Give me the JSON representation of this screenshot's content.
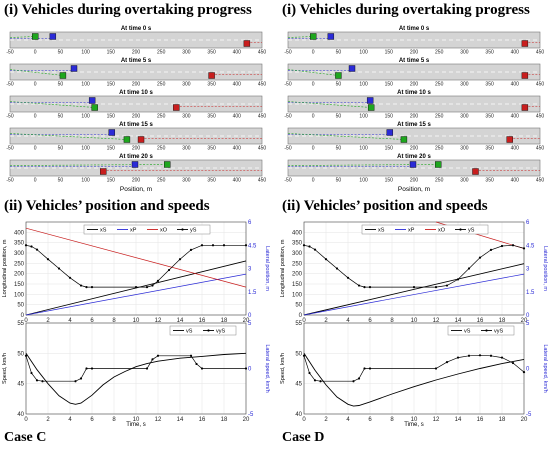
{
  "colors": {
    "blue": "#2b2bd6",
    "green": "#1ea61e",
    "red": "#c81e1e",
    "black": "#000000",
    "track": "#d4d4d4",
    "axis": "#444444",
    "grid": "#e3e3e3"
  },
  "panels": [
    {
      "case_label": "Case C",
      "heading_top": "(i) Vehicles during overtaking progress",
      "heading_mid": "(ii) Vehicles’ position and speeds",
      "chart_data": [
        {
          "type": "scatter",
          "title": "(i) Vehicles during overtaking progress",
          "xlabel": "Position, m",
          "xlim": [
            -50,
            450
          ],
          "xticks": [
            -50,
            0,
            50,
            100,
            150,
            200,
            250,
            300,
            350,
            400,
            450
          ],
          "frames": [
            {
              "label": "At time 0 s",
              "xs": 0,
              "ys": 0,
              "xp": 35,
              "xo": 420,
              "lat": 1
            },
            {
              "label": "At time 5 s",
              "xs": 55,
              "ys": 2.3,
              "xp": 77,
              "xo": 350,
              "lat": 0
            },
            {
              "label": "At time 10 s",
              "xs": 118,
              "ys": 3.0,
              "xp": 113,
              "xo": 280,
              "lat": 0
            },
            {
              "label": "At time 15 s",
              "xs": 182,
              "ys": 3.0,
              "xp": 152,
              "xo": 210,
              "lat": 0
            },
            {
              "label": "At time 20 s",
              "xs": 262,
              "ys": 0,
              "xp": 198,
              "xo": 135,
              "lat": 1
            }
          ]
        },
        {
          "type": "line",
          "title": "(ii) Vehicles’ position and speeds",
          "xlabel": "Time, s",
          "ylabel": "Longitudinal position, m",
          "y2label": "Lateral position, m",
          "xlim": [
            0,
            20
          ],
          "ylim": [
            0,
            450
          ],
          "y2lim": [
            0,
            6
          ],
          "xticks": [
            0,
            2,
            4,
            6,
            8,
            10,
            12,
            14,
            16,
            18,
            20
          ],
          "yticks": [
            0,
            50,
            100,
            150,
            200,
            250,
            300,
            350,
            400
          ],
          "y2ticks": [
            "0",
            "1.5",
            "3",
            "4.5",
            "6"
          ],
          "legend": [
            "xS",
            "xP",
            "xO",
            "yS"
          ],
          "series": [
            {
              "name": "xS",
              "points": [
                [
                  0,
                  0
                ],
                [
                  20,
                  262
                ]
              ]
            },
            {
              "name": "xP",
              "points": [
                [
                  0,
                  0
                ],
                [
                  20,
                  198
                ]
              ]
            },
            {
              "name": "xO",
              "points": [
                [
                  0,
                  420
                ],
                [
                  20,
                  135
                ]
              ]
            },
            {
              "name": "yS",
              "points": [
                [
                  0,
                  4.5
                ],
                [
                  0.5,
                  4.42
                ],
                [
                  1,
                  4.22
                ],
                [
                  2,
                  3.6
                ],
                [
                  3,
                  3.0
                ],
                [
                  4,
                  2.4
                ],
                [
                  5,
                  1.9
                ],
                [
                  5.5,
                  1.8
                ],
                [
                  6,
                  1.8
                ],
                [
                  10,
                  1.8
                ],
                [
                  11,
                  1.8
                ],
                [
                  11.5,
                  1.9
                ],
                [
                  12,
                  2.2
                ],
                [
                  13,
                  2.9
                ],
                [
                  14,
                  3.6
                ],
                [
                  15,
                  4.2
                ],
                [
                  16,
                  4.5
                ],
                [
                  17,
                  4.5
                ],
                [
                  18,
                  4.5
                ],
                [
                  20,
                  4.5
                ]
              ]
            }
          ]
        },
        {
          "type": "line",
          "xlabel": "Time, s",
          "ylabel": "Speed, km/h",
          "y2label": "Lateral speed, km/h",
          "xlim": [
            0,
            20
          ],
          "ylim": [
            40,
            55
          ],
          "y2lim": [
            -5,
            5
          ],
          "xticks": [
            0,
            2,
            4,
            6,
            8,
            10,
            12,
            14,
            16,
            18,
            20
          ],
          "yticks": [
            40,
            45,
            50,
            55
          ],
          "y2ticks": [
            "-5",
            "0",
            "5"
          ],
          "legend": [
            "vS",
            "vyS"
          ],
          "series": [
            {
              "name": "vS",
              "points": [
                [
                  0,
                  50
                ],
                [
                  1,
                  47.3
                ],
                [
                  2,
                  45.0
                ],
                [
                  3,
                  43.0
                ],
                [
                  4,
                  41.8
                ],
                [
                  4.5,
                  41.6
                ],
                [
                  5,
                  41.8
                ],
                [
                  6,
                  43.1
                ],
                [
                  7,
                  44.8
                ],
                [
                  8,
                  46.1
                ],
                [
                  9,
                  47.0
                ],
                [
                  10,
                  47.8
                ],
                [
                  11,
                  48.3
                ],
                [
                  12,
                  48.7
                ],
                [
                  14,
                  49.2
                ],
                [
                  16,
                  49.5
                ],
                [
                  18,
                  49.8
                ],
                [
                  20,
                  50
                ]
              ]
            },
            {
              "name": "vyS",
              "points": [
                [
                  0,
                  1.4
                ],
                [
                  0.5,
                  -0.5
                ],
                [
                  1,
                  -1.3
                ],
                [
                  1.5,
                  -1.4
                ],
                [
                  4.5,
                  -1.4
                ],
                [
                  5,
                  -1.1
                ],
                [
                  5.5,
                  0
                ],
                [
                  6,
                  0
                ],
                [
                  11,
                  0
                ],
                [
                  11.5,
                  1.0
                ],
                [
                  12,
                  1.4
                ],
                [
                  15,
                  1.4
                ],
                [
                  15.5,
                  0.5
                ],
                [
                  16,
                  0
                ],
                [
                  20,
                  0
                ]
              ]
            }
          ]
        }
      ]
    },
    {
      "case_label": "Case D",
      "heading_top": "(i) Vehicles during overtaking progress",
      "heading_mid": "(ii) Vehicles’ position and speeds",
      "chart_data": [
        {
          "type": "scatter",
          "title": "(i) Vehicles during overtaking progress",
          "xlabel": "Position, m",
          "xlim": [
            -50,
            450
          ],
          "xticks": [
            -50,
            0,
            50,
            100,
            150,
            200,
            250,
            300,
            350,
            400,
            450
          ],
          "frames": [
            {
              "label": "At time 0 s",
              "xs": 0,
              "ys": 0,
              "xp": 35,
              "xo": 420,
              "lat": 1
            },
            {
              "label": "At time 5 s",
              "xs": 50,
              "ys": 2.3,
              "xp": 77,
              "xo": 420,
              "lat": 0
            },
            {
              "label": "At time 10 s",
              "xs": 115,
              "ys": 3.0,
              "xp": 113,
              "xo": 420,
              "lat": 0
            },
            {
              "label": "At time 15 s",
              "xs": 180,
              "ys": 3.0,
              "xp": 152,
              "xo": 390,
              "lat": 0
            },
            {
              "label": "At time 20 s",
              "xs": 248,
              "ys": 0,
              "xp": 198,
              "xo": 322,
              "lat": 1
            }
          ]
        },
        {
          "type": "line",
          "title": "(ii) Vehicles’ position and speeds",
          "xlabel": "Time, s",
          "ylabel": "Longitudinal position, m",
          "y2label": "Lateral position, m",
          "xlim": [
            0,
            20
          ],
          "ylim": [
            0,
            450
          ],
          "y2lim": [
            0,
            6
          ],
          "xticks": [
            0,
            2,
            4,
            6,
            8,
            10,
            12,
            14,
            16,
            18,
            20
          ],
          "yticks": [
            0,
            50,
            100,
            150,
            200,
            250,
            300,
            350,
            400
          ],
          "y2ticks": [
            "0",
            "1.5",
            "3",
            "4.5",
            "6"
          ],
          "legend": [
            "xS",
            "xP",
            "xO",
            "yS"
          ],
          "series": [
            {
              "name": "xS",
              "points": [
                [
                  0,
                  0
                ],
                [
                  20,
                  248
                ]
              ]
            },
            {
              "name": "xP",
              "points": [
                [
                  0,
                  0
                ],
                [
                  20,
                  198
                ]
              ]
            },
            {
              "name": "xO",
              "points": [
                [
                  12,
                  450
                ],
                [
                  20,
                  322
                ]
              ]
            },
            {
              "name": "yS",
              "points": [
                [
                  0,
                  4.5
                ],
                [
                  0.5,
                  4.42
                ],
                [
                  1,
                  4.22
                ],
                [
                  2,
                  3.6
                ],
                [
                  3,
                  3.0
                ],
                [
                  4,
                  2.4
                ],
                [
                  5,
                  1.9
                ],
                [
                  5.5,
                  1.8
                ],
                [
                  6,
                  1.8
                ],
                [
                  10,
                  1.8
                ],
                [
                  12,
                  1.8
                ],
                [
                  13,
                  1.9
                ],
                [
                  14,
                  2.3
                ],
                [
                  15,
                  3.0
                ],
                [
                  16,
                  3.7
                ],
                [
                  17,
                  4.2
                ],
                [
                  18,
                  4.45
                ],
                [
                  19,
                  4.5
                ],
                [
                  20,
                  4.3
                ]
              ]
            }
          ]
        },
        {
          "type": "line",
          "xlabel": "Time, s",
          "ylabel": "Speed, km/h",
          "y2label": "Lateral speed, km/h",
          "xlim": [
            0,
            20
          ],
          "ylim": [
            40,
            55
          ],
          "y2lim": [
            -5,
            5
          ],
          "xticks": [
            0,
            2,
            4,
            6,
            8,
            10,
            12,
            14,
            16,
            18,
            20
          ],
          "yticks": [
            40,
            45,
            50,
            55
          ],
          "y2ticks": [
            "-5",
            "0",
            "5"
          ],
          "legend": [
            "vS",
            "vyS"
          ],
          "series": [
            {
              "name": "vS",
              "points": [
                [
                  0,
                  50
                ],
                [
                  1,
                  47.2
                ],
                [
                  2,
                  44.8
                ],
                [
                  3,
                  42.8
                ],
                [
                  4,
                  41.6
                ],
                [
                  4.5,
                  41.3
                ],
                [
                  5,
                  41.4
                ],
                [
                  6,
                  42.0
                ],
                [
                  8,
                  43.3
                ],
                [
                  10,
                  44.5
                ],
                [
                  12,
                  45.6
                ],
                [
                  14,
                  46.6
                ],
                [
                  16,
                  47.5
                ],
                [
                  18,
                  48.3
                ],
                [
                  20,
                  49
                ]
              ]
            },
            {
              "name": "vyS",
              "points": [
                [
                  0,
                  1.4
                ],
                [
                  0.5,
                  -0.5
                ],
                [
                  1,
                  -1.3
                ],
                [
                  1.5,
                  -1.4
                ],
                [
                  4.5,
                  -1.4
                ],
                [
                  5,
                  -1.1
                ],
                [
                  5.5,
                  0
                ],
                [
                  6,
                  0
                ],
                [
                  12,
                  0
                ],
                [
                  13,
                  0.7
                ],
                [
                  14,
                  1.2
                ],
                [
                  15,
                  1.4
                ],
                [
                  16,
                  1.45
                ],
                [
                  17,
                  1.4
                ],
                [
                  18,
                  1.2
                ],
                [
                  19,
                  0.6
                ],
                [
                  20,
                  -0.4
                ]
              ]
            }
          ]
        }
      ]
    }
  ]
}
